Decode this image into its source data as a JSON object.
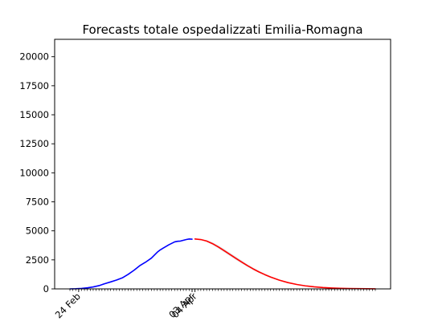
{
  "chart_data": {
    "type": "line",
    "title": "Forecasts totale ospedalizzati Emilia-Romagna",
    "xlabel": "",
    "ylabel": "",
    "ylim": [
      0,
      21500
    ],
    "yticks": [
      0,
      2500,
      5000,
      7500,
      10000,
      12500,
      15000,
      17500,
      20000
    ],
    "ytick_labels": [
      "0",
      "2500",
      "5000",
      "7500",
      "10000",
      "12500",
      "15000",
      "17500",
      "20000"
    ],
    "x_start_date": "2020-02-21",
    "x_end_date": "2020-06-05",
    "xtick_labels": [
      {
        "date": "2020-02-24",
        "label": "24 Feb"
      },
      {
        "date": "2020-04-03",
        "label": "03 Apr"
      },
      {
        "date": "2020-04-04",
        "label": "04 Apr"
      }
    ],
    "series": [
      {
        "color": "#0000ff",
        "x": [
          "2020-02-21",
          "2020-02-23",
          "2020-02-25",
          "2020-02-27",
          "2020-02-29",
          "2020-03-02",
          "2020-03-04",
          "2020-03-06",
          "2020-03-08",
          "2020-03-10",
          "2020-03-12",
          "2020-03-14",
          "2020-03-16",
          "2020-03-18",
          "2020-03-20",
          "2020-03-22",
          "2020-03-23",
          "2020-03-24",
          "2020-03-26",
          "2020-03-28",
          "2020-03-29",
          "2020-03-30",
          "2020-04-01",
          "2020-04-02",
          "2020-04-03"
        ],
        "y": [
          0,
          10,
          40,
          90,
          170,
          280,
          450,
          600,
          760,
          950,
          1250,
          1600,
          2000,
          2300,
          2650,
          3150,
          3350,
          3500,
          3800,
          4050,
          4100,
          4120,
          4250,
          4300,
          4280
        ]
      },
      {
        "color": "#ff0000",
        "x": [
          "2020-04-04",
          "2020-04-06",
          "2020-04-08",
          "2020-04-10",
          "2020-04-12",
          "2020-04-14",
          "2020-04-16",
          "2020-04-18",
          "2020-04-20",
          "2020-04-22",
          "2020-04-24",
          "2020-04-26",
          "2020-04-28",
          "2020-04-30",
          "2020-05-03",
          "2020-05-06",
          "2020-05-09",
          "2020-05-12",
          "2020-05-15",
          "2020-05-18",
          "2020-05-21",
          "2020-05-24",
          "2020-05-27",
          "2020-05-30",
          "2020-06-02",
          "2020-06-05"
        ],
        "y": [
          4300,
          4250,
          4120,
          3900,
          3620,
          3300,
          2970,
          2640,
          2320,
          2010,
          1720,
          1460,
          1230,
          1020,
          750,
          540,
          380,
          260,
          175,
          115,
          75,
          48,
          30,
          19,
          12,
          7
        ],
        "band": [
          [
            4300,
            4300
          ],
          [
            4230,
            4270
          ],
          [
            4060,
            4200
          ],
          [
            3800,
            4010
          ],
          [
            3500,
            3740
          ],
          [
            3160,
            3440
          ],
          [
            2830,
            3110
          ],
          [
            2510,
            2780
          ],
          [
            2200,
            2450
          ],
          [
            1910,
            2120
          ],
          [
            1630,
            1820
          ],
          [
            1380,
            1550
          ],
          [
            1160,
            1310
          ],
          [
            960,
            1090
          ],
          [
            705,
            800
          ],
          [
            505,
            575
          ],
          [
            355,
            405
          ],
          [
            240,
            280
          ],
          [
            160,
            190
          ],
          [
            105,
            125
          ],
          [
            68,
            82
          ],
          [
            43,
            53
          ],
          [
            27,
            33
          ],
          [
            17,
            21
          ],
          [
            10,
            14
          ],
          [
            6,
            9
          ]
        ]
      }
    ]
  }
}
